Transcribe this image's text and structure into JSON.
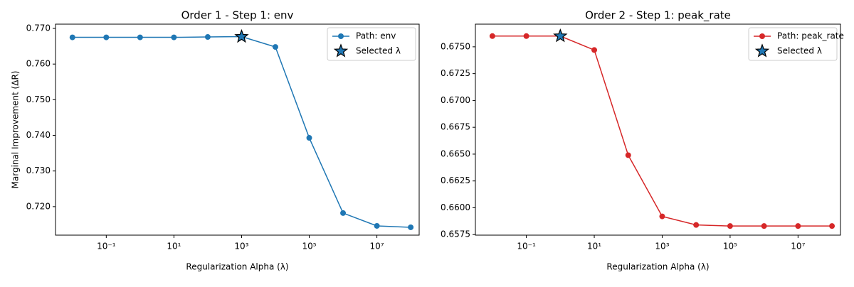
{
  "chart_data": [
    {
      "type": "line",
      "title": "Order 1 - Step 1: env",
      "xlabel": "Regularization Alpha (λ)",
      "ylabel": "Marginal Improvement (ΔR)",
      "x": [
        0.01,
        0.1,
        1,
        10,
        100,
        1000,
        10000,
        100000,
        1000000,
        10000000,
        100000000
      ],
      "xscale": "log",
      "xlim": [
        0.00316,
        177827941
      ],
      "xticks": [
        {
          "value": 0.1,
          "label": "10⁻¹"
        },
        {
          "value": 10,
          "label": "10¹"
        },
        {
          "value": 1000,
          "label": "10³"
        },
        {
          "value": 100000,
          "label": "10⁵"
        },
        {
          "value": 10000000,
          "label": "10⁷"
        }
      ],
      "ylim": [
        0.712,
        0.7712
      ],
      "yticks": [
        {
          "value": 0.72,
          "label": "0.720"
        },
        {
          "value": 0.73,
          "label": "0.730"
        },
        {
          "value": 0.74,
          "label": "0.740"
        },
        {
          "value": 0.75,
          "label": "0.750"
        },
        {
          "value": 0.76,
          "label": "0.760"
        },
        {
          "value": 0.77,
          "label": "0.770"
        }
      ],
      "legend": "upper right",
      "series": [
        {
          "name": "Path: env",
          "color": "#1f77b4",
          "values": [
            0.7675,
            0.7675,
            0.7675,
            0.7675,
            0.7676,
            0.7677,
            0.7648,
            0.7393,
            0.7182,
            0.7146,
            0.7142
          ]
        },
        {
          "name": "Selected λ",
          "color": "#1f77b4",
          "marker": "star",
          "x": [
            1000
          ],
          "values": [
            0.7677
          ]
        }
      ]
    },
    {
      "type": "line",
      "title": "Order 2 - Step 1: peak_rate",
      "xlabel": "Regularization Alpha (λ)",
      "x": [
        0.01,
        0.1,
        1,
        10,
        100,
        1000,
        10000,
        100000,
        1000000,
        10000000,
        100000000
      ],
      "xscale": "log",
      "xlim": [
        0.00316,
        177827941
      ],
      "xticks": [
        {
          "value": 0.1,
          "label": "10⁻¹"
        },
        {
          "value": 10,
          "label": "10¹"
        },
        {
          "value": 1000,
          "label": "10³"
        },
        {
          "value": 100000,
          "label": "10⁵"
        },
        {
          "value": 10000000,
          "label": "10⁷"
        }
      ],
      "ylim": [
        0.65745,
        0.67711
      ],
      "yticks": [
        0.6575,
        {
          "value": 0.66,
          "label": "0.6600"
        },
        0.6625,
        {
          "value": 0.665,
          "label": "0.6650"
        },
        0.6675,
        {
          "value": 0.67,
          "label": "0.6700"
        },
        0.6725,
        {
          "value": 0.675,
          "label": "0.6750"
        }
      ],
      "legend": "upper right",
      "series": [
        {
          "name": "Path: peak_rate",
          "color": "#d62728",
          "values": [
            0.676,
            0.676,
            0.676,
            0.6747,
            0.6649,
            0.6592,
            0.6584,
            0.6583,
            0.6583,
            0.6583,
            0.6583
          ]
        },
        {
          "name": "Selected λ",
          "color": "#1f77b4",
          "marker": "star",
          "x": [
            1
          ],
          "values": [
            0.676
          ]
        }
      ]
    }
  ]
}
